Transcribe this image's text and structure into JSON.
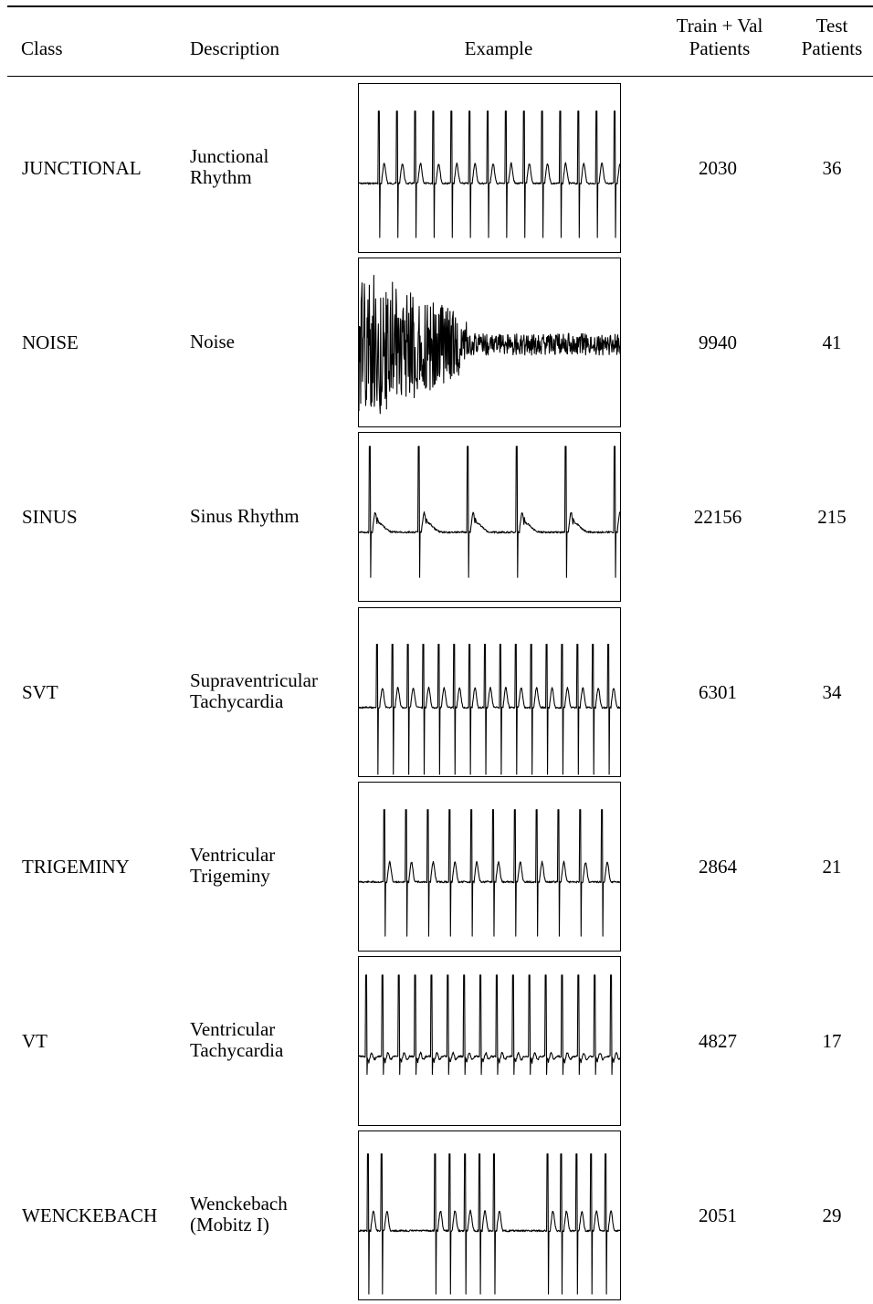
{
  "table": {
    "headers": {
      "class": "Class",
      "description": "Description",
      "example": "Example",
      "train_val_line1": "Train + Val",
      "train_val_line2": "Patients",
      "test_line1": "Test",
      "test_line2": "Patients"
    },
    "rows": [
      {
        "class": "JUNCTIONAL",
        "desc1": "Junctional",
        "desc2": "Rhythm",
        "train_val": "2030",
        "test": "36",
        "waveform": "junctional"
      },
      {
        "class": "NOISE",
        "desc1": "Noise",
        "desc2": "",
        "train_val": "9940",
        "test": "41",
        "waveform": "noise"
      },
      {
        "class": "SINUS",
        "desc1": "Sinus Rhythm",
        "desc2": "",
        "train_val": "22156",
        "test": "215",
        "waveform": "sinus"
      },
      {
        "class": "SVT",
        "desc1": "Supraventricular",
        "desc2": "Tachycardia",
        "train_val": "6301",
        "test": "34",
        "waveform": "svt"
      },
      {
        "class": "TRIGEMINY",
        "desc1": "Ventricular",
        "desc2": "Trigeminy",
        "train_val": "2864",
        "test": "21",
        "waveform": "trigeminy"
      },
      {
        "class": "VT",
        "desc1": "Ventricular",
        "desc2": "Tachycardia",
        "train_val": "4827",
        "test": "17",
        "waveform": "vt"
      },
      {
        "class": "WENCKEBACH",
        "desc1": "Wenckebach",
        "desc2": "(Mobitz I)",
        "train_val": "2051",
        "test": "29",
        "waveform": "wenckebach"
      }
    ]
  }
}
